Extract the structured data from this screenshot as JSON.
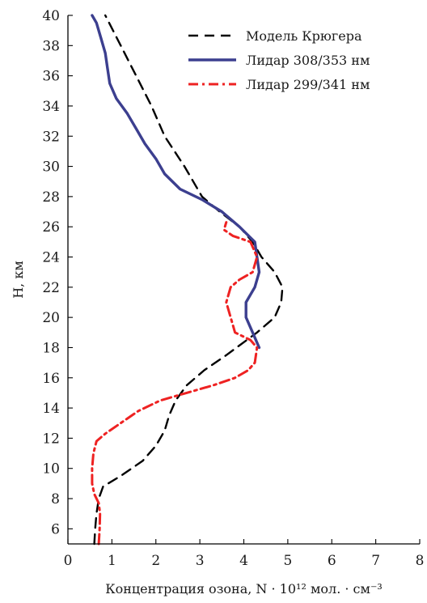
{
  "chart_data": {
    "type": "line",
    "title": "",
    "xlabel": "Концентрация озона, N · 10¹² мол. · см⁻³",
    "ylabel": "H, км",
    "xlim": [
      0,
      8
    ],
    "ylim": [
      5,
      40
    ],
    "xticks": [
      0,
      1,
      2,
      3,
      4,
      5,
      6,
      7,
      8
    ],
    "yticks": [
      6,
      8,
      10,
      12,
      14,
      16,
      18,
      20,
      22,
      24,
      26,
      28,
      30,
      32,
      34,
      36,
      38,
      40
    ],
    "grid": false,
    "legend_position": "top-right",
    "series": [
      {
        "name": "Модель Крюгера",
        "color": "#000000",
        "style": "dashed",
        "points": [
          [
            0.6,
            5
          ],
          [
            0.62,
            6
          ],
          [
            0.65,
            7
          ],
          [
            0.7,
            8
          ],
          [
            0.8,
            8.8
          ],
          [
            1.2,
            9.5
          ],
          [
            1.7,
            10.5
          ],
          [
            2.0,
            11.5
          ],
          [
            2.2,
            12.5
          ],
          [
            2.3,
            13.5
          ],
          [
            2.45,
            14.5
          ],
          [
            2.7,
            15.5
          ],
          [
            3.1,
            16.5
          ],
          [
            3.6,
            17.5
          ],
          [
            4.3,
            19.0
          ],
          [
            4.7,
            20.0
          ],
          [
            4.85,
            21.0
          ],
          [
            4.88,
            22.0
          ],
          [
            4.7,
            23.0
          ],
          [
            4.4,
            24.0
          ],
          [
            4.2,
            25.0
          ],
          [
            3.9,
            26.0
          ],
          [
            3.45,
            27.0
          ],
          [
            3.05,
            28.0
          ],
          [
            2.65,
            30.0
          ],
          [
            2.2,
            32.0
          ],
          [
            1.9,
            34.0
          ],
          [
            1.55,
            36.0
          ],
          [
            1.2,
            38.0
          ],
          [
            0.85,
            40.0
          ]
        ]
      },
      {
        "name": "Лидар 308/353 нм",
        "color": "#3c3f8f",
        "style": "solid",
        "points": [
          [
            4.35,
            18
          ],
          [
            4.2,
            19
          ],
          [
            4.05,
            20
          ],
          [
            4.05,
            21
          ],
          [
            4.25,
            22
          ],
          [
            4.35,
            23
          ],
          [
            4.3,
            24
          ],
          [
            4.25,
            25
          ],
          [
            3.9,
            26
          ],
          [
            3.5,
            27
          ],
          [
            3.05,
            27.8
          ],
          [
            2.55,
            28.5
          ],
          [
            2.2,
            29.5
          ],
          [
            2.0,
            30.5
          ],
          [
            1.75,
            31.5
          ],
          [
            1.55,
            32.5
          ],
          [
            1.35,
            33.5
          ],
          [
            1.1,
            34.5
          ],
          [
            0.95,
            35.5
          ],
          [
            0.9,
            36.5
          ],
          [
            0.85,
            37.5
          ],
          [
            0.75,
            38.5
          ],
          [
            0.65,
            39.5
          ],
          [
            0.55,
            40
          ]
        ]
      },
      {
        "name": "Лидар 299/341 нм",
        "color": "#ee2222",
        "style": "dashdot",
        "points": [
          [
            0.7,
            5
          ],
          [
            0.72,
            6
          ],
          [
            0.73,
            7
          ],
          [
            0.7,
            7.7
          ],
          [
            0.6,
            8.3
          ],
          [
            0.55,
            9
          ],
          [
            0.55,
            10
          ],
          [
            0.58,
            11
          ],
          [
            0.65,
            11.8
          ],
          [
            0.85,
            12.3
          ],
          [
            1.2,
            13.0
          ],
          [
            1.6,
            13.8
          ],
          [
            2.1,
            14.5
          ],
          [
            2.7,
            15.0
          ],
          [
            3.3,
            15.5
          ],
          [
            3.8,
            16.0
          ],
          [
            4.1,
            16.5
          ],
          [
            4.25,
            17.0
          ],
          [
            4.3,
            18.0
          ],
          [
            4.15,
            18.5
          ],
          [
            3.8,
            19
          ],
          [
            3.7,
            20
          ],
          [
            3.6,
            21
          ],
          [
            3.7,
            22
          ],
          [
            3.9,
            22.5
          ],
          [
            4.2,
            23
          ],
          [
            4.3,
            24
          ],
          [
            4.15,
            25
          ],
          [
            3.75,
            25.4
          ],
          [
            3.55,
            25.8
          ],
          [
            3.6,
            26.3
          ]
        ]
      }
    ]
  }
}
